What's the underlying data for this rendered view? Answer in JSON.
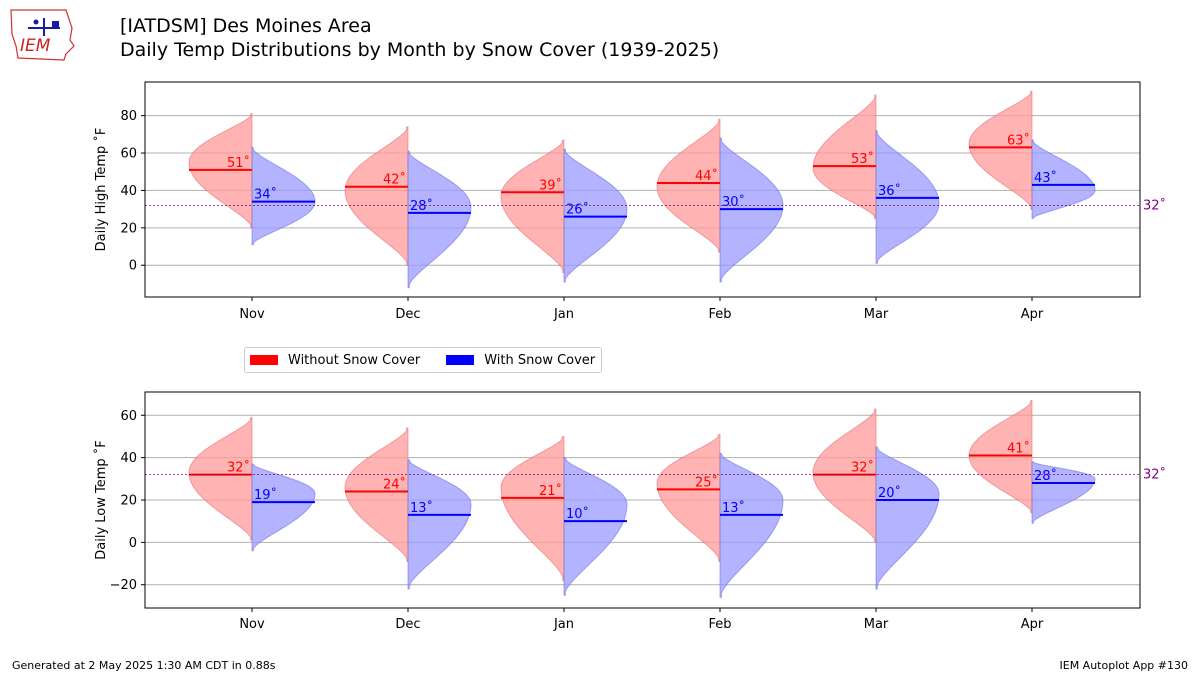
{
  "header": {
    "title_line1": "[IATDSM] Des Moines Area",
    "title_line2": "Daily Temp Distributions by Month by Snow Cover (1939-2025)"
  },
  "logo": {
    "text": "IEM"
  },
  "footer": {
    "left": "Generated at 2 May 2025 1:30 AM CDT in 0.88s",
    "right": "IEM Autoplot App #130"
  },
  "colors": {
    "without_snow": "#ff0000",
    "with_snow": "#0000ff",
    "without_fill": "#ff9999",
    "with_fill": "#9999ff",
    "freezing_line": "#800080",
    "grid": "#b0b0b0"
  },
  "legend": {
    "without_label": "Without Snow Cover",
    "with_label": "With Snow Cover"
  },
  "chart_data": [
    {
      "type": "violin",
      "ylabel": "Daily High Temp $^\\circ$F",
      "ylabel_display": "Daily High Temp ˚F",
      "categories": [
        "Nov",
        "Dec",
        "Jan",
        "Feb",
        "Mar",
        "Apr"
      ],
      "ylim": [
        -17,
        98
      ],
      "yticks": [
        0,
        20,
        40,
        60,
        80
      ],
      "grid": true,
      "reference_line": {
        "value": 32,
        "label": "32˚"
      },
      "series": [
        {
          "name": "Without Snow Cover",
          "side": "left",
          "averages": [
            51,
            42,
            39,
            44,
            53,
            63
          ],
          "labels": [
            "51˚",
            "42˚",
            "39˚",
            "44˚",
            "53˚",
            "63˚"
          ],
          "ranges": [
            [
              20,
              81
            ],
            [
              0,
              74
            ],
            [
              -4,
              67
            ],
            [
              7,
              78
            ],
            [
              25,
              91
            ],
            [
              30,
              93
            ]
          ],
          "modes": [
            55,
            40,
            37,
            42,
            52,
            65
          ]
        },
        {
          "name": "With Snow Cover",
          "side": "right",
          "averages": [
            34,
            28,
            26,
            30,
            36,
            43
          ],
          "labels": [
            "34˚",
            "28˚",
            "26˚",
            "30˚",
            "36˚",
            "43˚"
          ],
          "ranges": [
            [
              11,
              63
            ],
            [
              -12,
              61
            ],
            [
              -9,
              62
            ],
            [
              -9,
              68
            ],
            [
              1,
              72
            ],
            [
              25,
              67
            ]
          ],
          "modes": [
            34,
            31,
            30,
            32,
            33,
            40
          ]
        }
      ]
    },
    {
      "type": "violin",
      "ylabel": "Daily Low Temp $^\\circ$F",
      "ylabel_display": "Daily Low Temp ˚F",
      "categories": [
        "Nov",
        "Dec",
        "Jan",
        "Feb",
        "Mar",
        "Apr"
      ],
      "ylim": [
        -31,
        71
      ],
      "yticks": [
        -20,
        0,
        20,
        40,
        60
      ],
      "grid": true,
      "reference_line": {
        "value": 32,
        "label": "32˚"
      },
      "series": [
        {
          "name": "Without Snow Cover",
          "side": "left",
          "averages": [
            32,
            24,
            21,
            25,
            32,
            41
          ],
          "labels": [
            "32˚",
            "24˚",
            "21˚",
            "25˚",
            "32˚",
            "41˚"
          ],
          "ranges": [
            [
              1,
              59
            ],
            [
              -9,
              54
            ],
            [
              -18,
              50
            ],
            [
              -9,
              51
            ],
            [
              0,
              63
            ],
            [
              14,
              67
            ]
          ],
          "modes": [
            33,
            26,
            26,
            28,
            33,
            41
          ]
        },
        {
          "name": "With Snow Cover",
          "side": "right",
          "averages": [
            19,
            13,
            10,
            13,
            20,
            28
          ],
          "labels": [
            "19˚",
            "13˚",
            "10˚",
            "13˚",
            "20˚",
            "28˚"
          ],
          "ranges": [
            [
              -4,
              37
            ],
            [
              -22,
              39
            ],
            [
              -25,
              40
            ],
            [
              -26,
              42
            ],
            [
              -22,
              45
            ],
            [
              9,
              38
            ]
          ],
          "modes": [
            23,
            18,
            18,
            20,
            23,
            30
          ]
        }
      ]
    }
  ]
}
